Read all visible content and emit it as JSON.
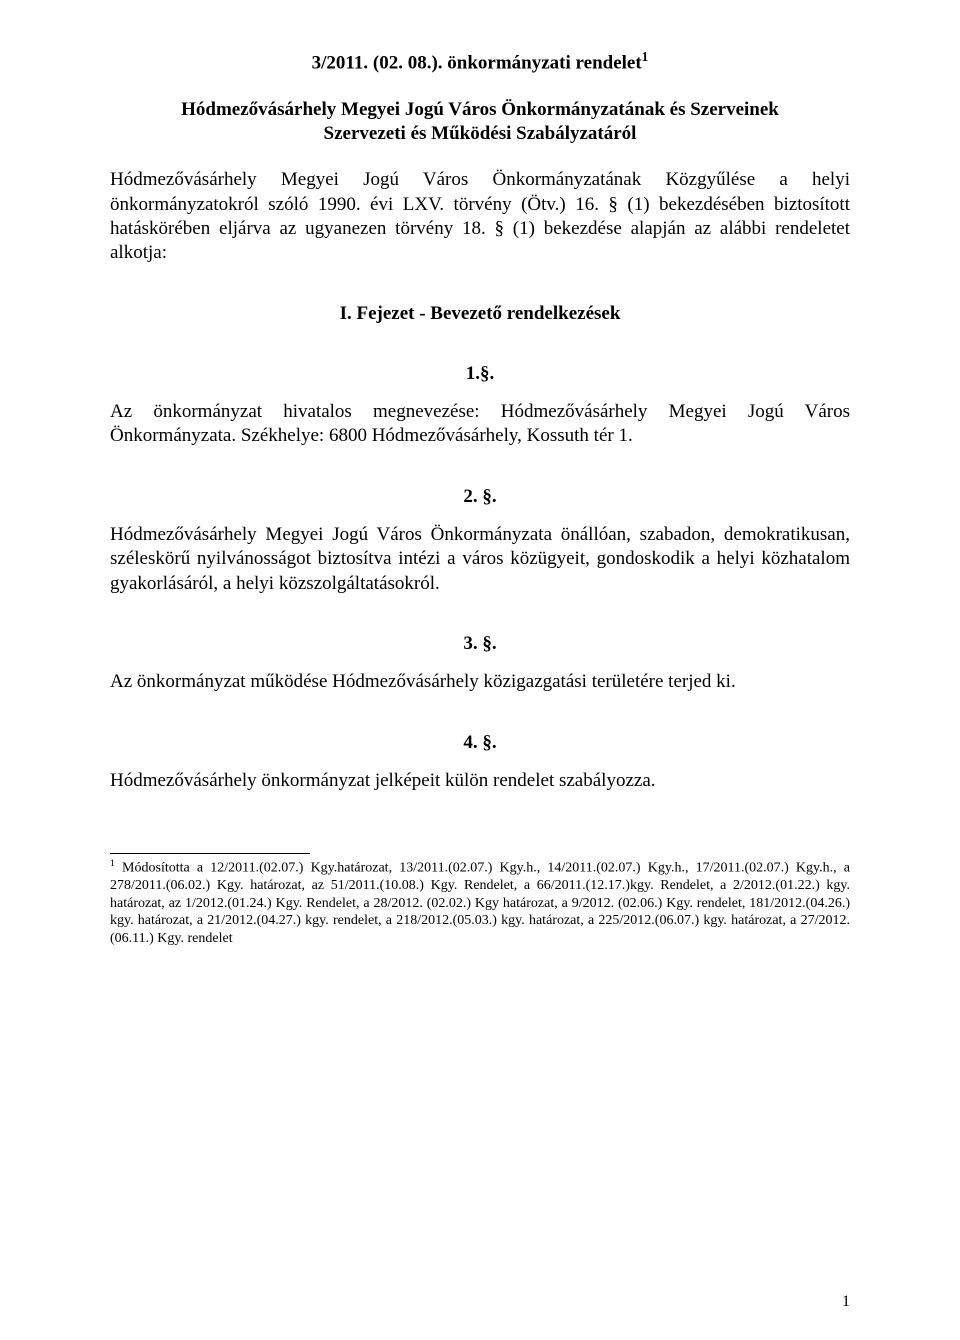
{
  "title": {
    "line": "3/2011. (02. 08.). önkormányzati rendelet",
    "sup": "1"
  },
  "subtitle": {
    "line1": "Hódmezővásárhely Megyei Jogú Város Önkormányzatának és Szerveinek",
    "line2": "Szervezeti és Működési Szabályzatáról"
  },
  "intro": "Hódmezővásárhely Megyei Jogú Város Önkormányzatának Közgyűlése a helyi önkormányzatokról szóló 1990. évi LXV. törvény (Ötv.) 16. § (1) bekezdésében biztosított hatáskörében eljárva az ugyanezen törvény 18. § (1) bekezdése alapján az alábbi rendeletet alkotja:",
  "chapter": "I. Fejezet - Bevezető rendelkezések",
  "sections": {
    "s1": {
      "num": "1.§.",
      "text": "Az önkormányzat hivatalos megnevezése: Hódmezővásárhely Megyei Jogú Város Önkormányzata. Székhelye: 6800 Hódmezővásárhely, Kossuth tér 1."
    },
    "s2": {
      "num": "2. §.",
      "text": "Hódmezővásárhely Megyei Jogú Város Önkormányzata önállóan, szabadon, demokratikusan, széleskörű nyilvánosságot biztosítva intézi a város közügyeit, gondoskodik a helyi közhatalom gyakorlásáról, a helyi közszolgáltatásokról."
    },
    "s3": {
      "num": "3. §.",
      "text": "Az önkormányzat működése Hódmezővásárhely közigazgatási területére terjed ki."
    },
    "s4": {
      "num": "4. §.",
      "text": "Hódmezővásárhely önkormányzat jelképeit külön rendelet szabályozza."
    }
  },
  "footnote": {
    "sup": "1",
    "text": " Módosította a 12/2011.(02.07.) Kgy.határozat, 13/2011.(02.07.) Kgy.h., 14/2011.(02.07.) Kgy.h., 17/2011.(02.07.) Kgy.h., a 278/2011.(06.02.) Kgy. határozat, az 51/2011.(10.08.) Kgy. Rendelet, a 66/2011.(12.17.)kgy. Rendelet, a 2/2012.(01.22.) kgy. határozat, az 1/2012.(01.24.) Kgy. Rendelet, a 28/2012. (02.02.) Kgy határozat, a 9/2012. (02.06.) Kgy. rendelet, 181/2012.(04.26.) kgy. határozat, a 21/2012.(04.27.) kgy. rendelet, a 218/2012.(05.03.) kgy. határozat, a 225/2012.(06.07.) kgy. határozat, a 27/2012.(06.11.) Kgy. rendelet"
  },
  "pageNumber": "1"
}
